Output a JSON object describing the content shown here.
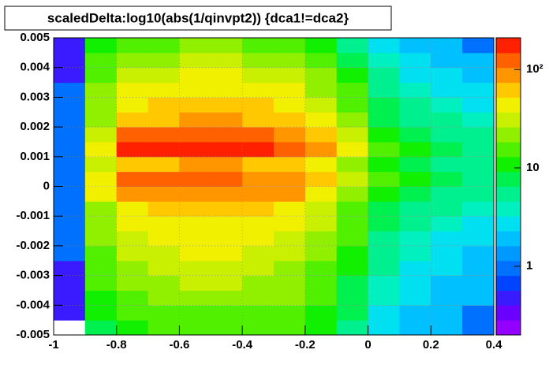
{
  "chart_data": {
    "type": "heatmap",
    "title": "scaledDelta:log10(abs(1/qinvpt2)) {dca1!=dca2}",
    "xbins": [
      -1,
      -0.9,
      -0.8,
      -0.7,
      -0.6,
      -0.5,
      -0.4,
      -0.3,
      -0.2,
      -0.1,
      0,
      0.1,
      0.2,
      0.3,
      0.4
    ],
    "ybins": [
      -0.005,
      -0.0045,
      -0.004,
      -0.0035,
      -0.003,
      -0.0025,
      -0.002,
      -0.0015,
      -0.001,
      -0.0005,
      0,
      0.0005,
      0.001,
      0.0015,
      0.002,
      0.0025,
      0.003,
      0.0035,
      0.004,
      0.0045,
      0.005
    ],
    "z": [
      [
        0,
        8,
        12,
        14,
        15,
        15,
        15,
        14,
        10,
        6,
        3,
        2,
        2,
        1
      ],
      [
        0.5,
        10,
        15,
        18,
        18,
        18,
        18,
        16,
        12,
        7,
        3,
        2,
        2,
        1
      ],
      [
        0.5,
        12,
        18,
        20,
        22,
        22,
        22,
        20,
        14,
        8,
        4,
        3,
        2,
        2
      ],
      [
        0.5,
        14,
        22,
        25,
        28,
        28,
        26,
        22,
        16,
        9,
        4,
        3,
        2,
        2
      ],
      [
        0.5,
        16,
        25,
        30,
        32,
        32,
        30,
        26,
        18,
        10,
        5,
        3,
        3,
        2
      ],
      [
        1,
        18,
        30,
        35,
        38,
        38,
        35,
        30,
        20,
        12,
        5,
        4,
        3,
        2
      ],
      [
        1,
        20,
        35,
        40,
        45,
        45,
        42,
        35,
        25,
        14,
        6,
        4,
        3,
        3
      ],
      [
        1,
        22,
        40,
        45,
        50,
        50,
        48,
        40,
        28,
        16,
        7,
        5,
        4,
        3
      ],
      [
        1,
        25,
        45,
        55,
        60,
        60,
        55,
        45,
        32,
        18,
        8,
        6,
        5,
        4
      ],
      [
        1,
        40,
        90,
        100,
        100,
        100,
        90,
        80,
        50,
        25,
        12,
        8,
        6,
        5
      ],
      [
        1,
        50,
        110,
        110,
        110,
        110,
        100,
        90,
        60,
        30,
        15,
        10,
        8,
        6
      ],
      [
        1,
        35,
        60,
        70,
        75,
        75,
        70,
        60,
        45,
        25,
        10,
        8,
        6,
        5
      ],
      [
        1,
        40,
        150,
        160,
        160,
        160,
        150,
        140,
        100,
        40,
        15,
        10,
        8,
        6
      ],
      [
        1,
        35,
        110,
        120,
        120,
        120,
        110,
        100,
        70,
        30,
        12,
        8,
        6,
        5
      ],
      [
        1,
        25,
        60,
        70,
        75,
        75,
        70,
        55,
        40,
        20,
        8,
        6,
        5,
        4
      ],
      [
        1,
        22,
        50,
        60,
        65,
        65,
        60,
        45,
        30,
        16,
        7,
        5,
        4,
        3
      ],
      [
        1,
        20,
        40,
        48,
        52,
        52,
        48,
        38,
        25,
        14,
        6,
        4,
        3,
        3
      ],
      [
        0.5,
        16,
        30,
        35,
        38,
        38,
        35,
        28,
        20,
        10,
        5,
        3,
        3,
        2
      ],
      [
        0.5,
        14,
        22,
        25,
        28,
        28,
        26,
        22,
        15,
        8,
        4,
        3,
        2,
        2
      ],
      [
        0.5,
        10,
        15,
        18,
        20,
        20,
        18,
        16,
        12,
        6,
        3,
        2,
        2,
        1
      ]
    ],
    "xlim": [
      -1,
      0.4
    ],
    "xticks": [
      -1,
      -0.8,
      -0.6,
      -0.4,
      -0.2,
      0,
      0.2,
      0.4
    ],
    "ylim": [
      -0.005,
      0.005
    ],
    "yticks": [
      -0.005,
      -0.004,
      -0.003,
      -0.002,
      -0.001,
      0,
      0.001,
      0.002,
      0.003,
      0.004,
      0.005
    ],
    "zlim": [
      0.2,
      210
    ],
    "zlog": true,
    "zticks": [
      1,
      10,
      {
        "value": 100,
        "label": "10²"
      }
    ],
    "grid": true,
    "palette": [
      "#9400ff",
      "#6a00ff",
      "#3a1aff",
      "#0044ff",
      "#0070ff",
      "#0099ff",
      "#00c0ff",
      "#00e0f0",
      "#00f0c0",
      "#00f090",
      "#00f050",
      "#10f000",
      "#50f000",
      "#90f000",
      "#c8f000",
      "#f0f000",
      "#ffc800",
      "#ff9600",
      "#ff6000",
      "#ff2000"
    ]
  }
}
